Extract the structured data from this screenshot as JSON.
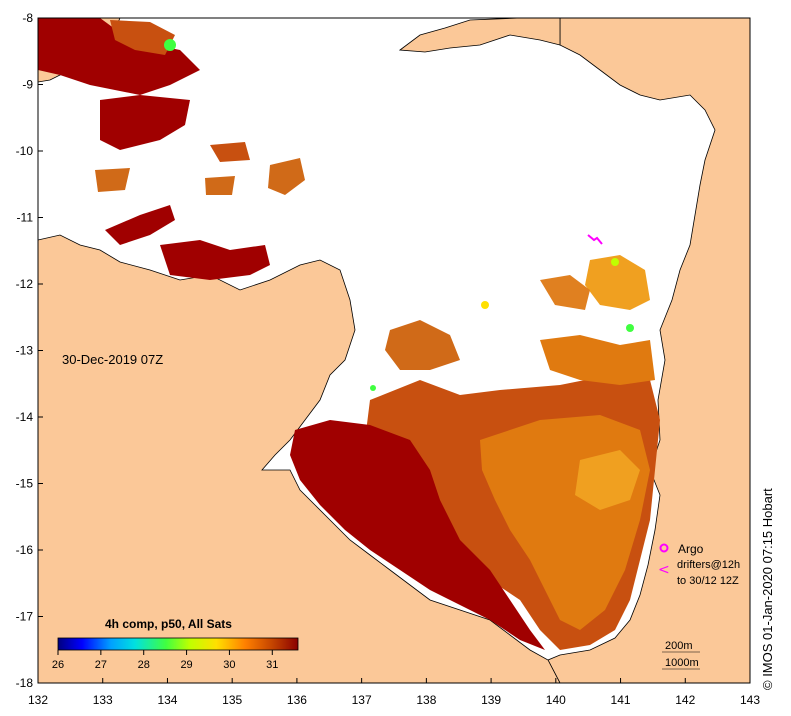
{
  "map": {
    "timestamp": "30-Dec-2019 07Z",
    "composite_label": "4h comp, p50, All Sats",
    "credit": "© IMOS 01-Jan-2020 07:15 Hobart",
    "x_ticks": [
      "132",
      "133",
      "134",
      "135",
      "136",
      "137",
      "138",
      "139",
      "140",
      "141",
      "142",
      "143"
    ],
    "y_ticks": [
      "-8",
      "-9",
      "-10",
      "-11",
      "-12",
      "-13",
      "-14",
      "-15",
      "-16",
      "-17",
      "-18"
    ],
    "colorbar": {
      "ticks": [
        "26",
        "27",
        "28",
        "29",
        "30",
        "31"
      ],
      "range": [
        26,
        31.6
      ],
      "colors": [
        "#000080",
        "#0000ff",
        "#00a0ff",
        "#00e0e0",
        "#40ff40",
        "#c0ff00",
        "#ffe000",
        "#ff8000",
        "#c04000",
        "#8b0000"
      ]
    },
    "legend": {
      "argo_label": "Argo",
      "drifters_label": "drifters@12h",
      "drifters_sub": "to 30/12 12Z",
      "contour_200": "200m",
      "contour_1000": "1000m",
      "argo_color": "#ff00ff"
    },
    "colors": {
      "land": "#fbc898",
      "sst_hot": "#a00000",
      "sst_warm": "#c85010",
      "sst_mid": "#e07a10",
      "sst_cool": "#f0a020"
    }
  }
}
